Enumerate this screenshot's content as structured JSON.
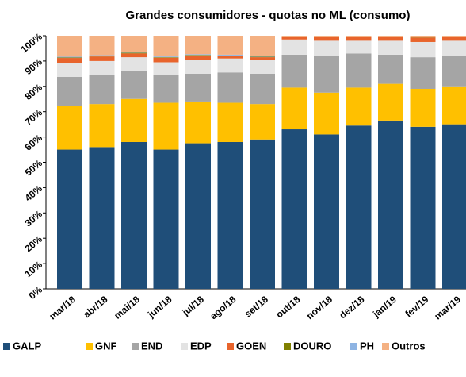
{
  "chart_data": {
    "type": "bar",
    "stacked": true,
    "title": "Grandes consumidores - quotas no ML (consumo)",
    "categories": [
      "mar/18",
      "abr/18",
      "mai/18",
      "jun/18",
      "jul/18",
      "ago/18",
      "set/18",
      "out/18",
      "nov/18",
      "dez/18",
      "jan/19",
      "fev/19",
      "mar/19"
    ],
    "ylim": [
      0,
      100
    ],
    "yticks": [
      {
        "value": 0,
        "label": "0%"
      },
      {
        "value": 10,
        "label": "10%"
      },
      {
        "value": 20,
        "label": "20%"
      },
      {
        "value": 30,
        "label": "30%"
      },
      {
        "value": 40,
        "label": "40%"
      },
      {
        "value": 50,
        "label": "50%"
      },
      {
        "value": 60,
        "label": "60%"
      },
      {
        "value": 70,
        "label": "70%"
      },
      {
        "value": 80,
        "label": "80%"
      },
      {
        "value": 90,
        "label": "90%"
      },
      {
        "value": 100,
        "label": "100%"
      }
    ],
    "legend": "bottom",
    "series": [
      {
        "name": "GALP",
        "color": "#1f4e79",
        "values": [
          55,
          56,
          58,
          55,
          57.5,
          58,
          59,
          63,
          61,
          64.5,
          66.5,
          64,
          65
        ]
      },
      {
        "name": "GNF",
        "color": "#ffc000",
        "values": [
          17.4,
          17,
          17,
          18.5,
          16.5,
          15.5,
          14,
          16.5,
          16.5,
          15,
          14.5,
          15,
          15
        ]
      },
      {
        "name": "END",
        "color": "#a5a5a5",
        "values": [
          11.3,
          11.5,
          11,
          11,
          11,
          12,
          12,
          13,
          14.5,
          13.5,
          11.5,
          12.5,
          12
        ]
      },
      {
        "name": "EDP",
        "color": "#e3e3e3",
        "values": [
          5.6,
          5.5,
          5.5,
          5,
          5.5,
          5.5,
          5.5,
          6,
          6,
          5,
          5.5,
          6,
          6
        ]
      },
      {
        "name": "GOEN",
        "color": "#e8642c",
        "values": [
          1.9,
          1.8,
          1.5,
          1.8,
          1.7,
          1,
          1,
          1,
          1.5,
          1.5,
          1.5,
          1.8,
          1.5
        ]
      },
      {
        "name": "DOURO",
        "color": "#808000",
        "values": [
          0.2,
          0.2,
          0.3,
          0.2,
          0.2,
          0.2,
          0.2,
          0.1,
          0.1,
          0.1,
          0.1,
          0.1,
          0.1
        ]
      },
      {
        "name": "PH",
        "color": "#8eb4e3",
        "values": [
          0.3,
          0.3,
          0.4,
          0.3,
          0.3,
          0.3,
          0.3,
          0.1,
          0.1,
          0.1,
          0.1,
          0.1,
          0.1
        ]
      },
      {
        "name": "Outros",
        "color": "#f4b183",
        "values": [
          8.3,
          7.7,
          6.3,
          8.2,
          7.3,
          7.5,
          8,
          0.3,
          0.3,
          0.3,
          0.3,
          0.5,
          0.3
        ]
      }
    ]
  }
}
